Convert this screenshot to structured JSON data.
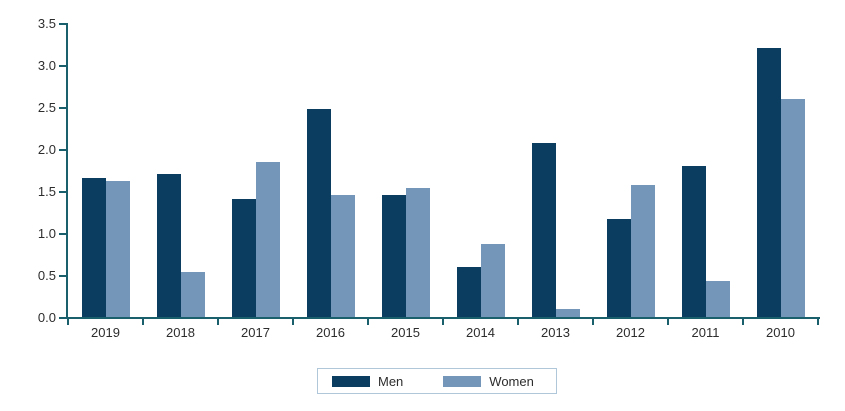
{
  "chart_data": {
    "type": "bar",
    "title": "",
    "xlabel": "",
    "ylabel": "",
    "categories": [
      "2019",
      "2018",
      "2017",
      "2016",
      "2015",
      "2014",
      "2013",
      "2012",
      "2011",
      "2010"
    ],
    "series": [
      {
        "name": "Men",
        "color": "#0B3D60",
        "values": [
          1.65,
          1.7,
          1.4,
          2.48,
          1.45,
          0.6,
          2.07,
          1.17,
          1.8,
          3.2
        ]
      },
      {
        "name": "Women",
        "color": "#7496B8",
        "values": [
          1.62,
          0.54,
          1.85,
          1.45,
          1.54,
          0.87,
          0.1,
          1.57,
          0.43,
          2.6
        ]
      }
    ],
    "ylim": [
      0,
      3.5
    ],
    "yticks": [
      0.0,
      0.5,
      1.0,
      1.5,
      2.0,
      2.5,
      3.0,
      3.5
    ],
    "ytick_labels": [
      "0.0",
      "0.5",
      "1.0",
      "1.5",
      "2.0",
      "2.5",
      "3.0",
      "3.5"
    ],
    "grid": false,
    "legend_position": "bottom"
  },
  "colors": {
    "axis": "#1A606C",
    "text": "#2D2D2D",
    "legend_border": "#AFC7D8",
    "background": "#FFFFFF"
  }
}
